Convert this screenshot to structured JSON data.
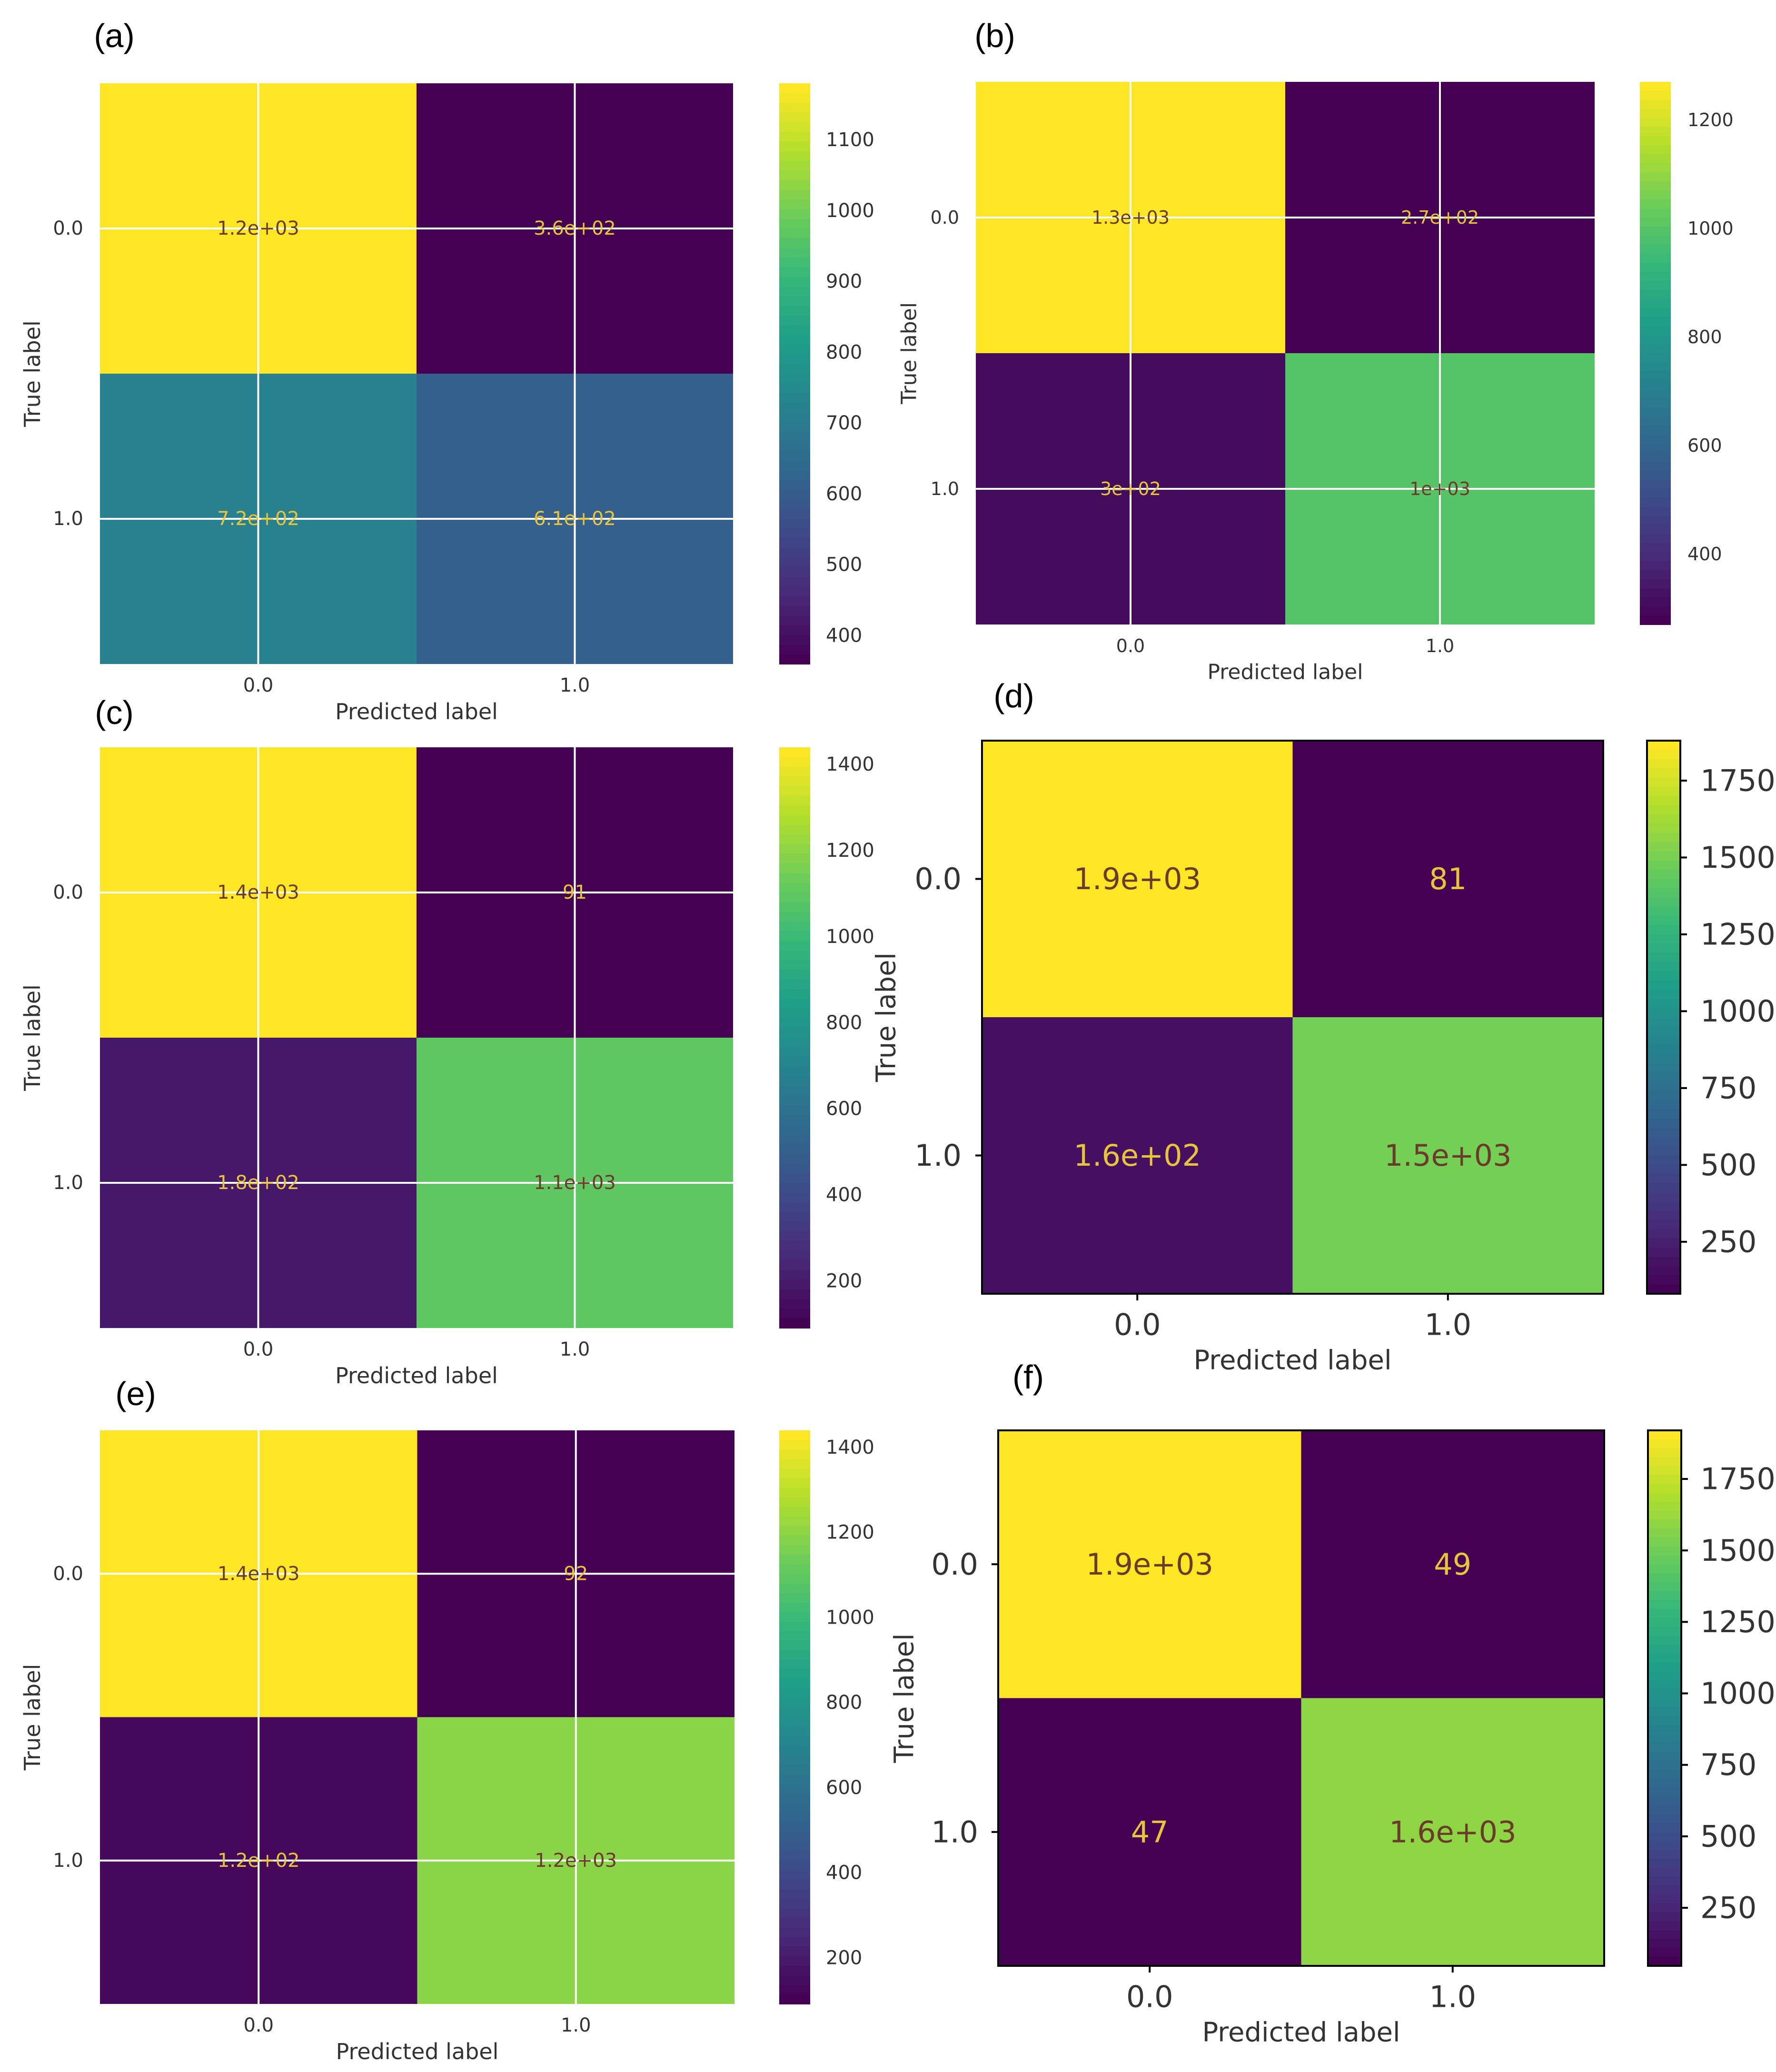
{
  "chart_data": [
    {
      "panel": "(a)",
      "type": "heatmap",
      "xlabel": "Predicted label",
      "ylabel": "True label",
      "x_ticks": [
        "0.0",
        "1.0"
      ],
      "y_ticks": [
        "0.0",
        "1.0"
      ],
      "values": [
        [
          1180,
          360
        ],
        [
          720,
          610
        ]
      ],
      "annotations": [
        [
          "1.2e+03",
          "3.6e+02"
        ],
        [
          "7.2e+02",
          "6.1e+02"
        ]
      ],
      "colorbar": {
        "min": 360,
        "max": 1180,
        "ticks": [
          400,
          500,
          600,
          700,
          800,
          900,
          1000,
          1100
        ]
      },
      "grid": true
    },
    {
      "panel": "(b)",
      "type": "heatmap",
      "xlabel": "Predicted label",
      "ylabel": "True label",
      "x_ticks": [
        "0.0",
        "1.0"
      ],
      "y_ticks": [
        "0.0",
        "1.0"
      ],
      "values": [
        [
          1270,
          270
        ],
        [
          300,
          1000
        ]
      ],
      "annotations": [
        [
          "1.3e+03",
          "2.7e+02"
        ],
        [
          "3e+02",
          "1e+03"
        ]
      ],
      "colorbar": {
        "min": 270,
        "max": 1270,
        "ticks": [
          400,
          600,
          800,
          1000,
          1200
        ]
      },
      "grid": true
    },
    {
      "panel": "(c)",
      "type": "heatmap",
      "xlabel": "Predicted label",
      "ylabel": "True label",
      "x_ticks": [
        "0.0",
        "1.0"
      ],
      "y_ticks": [
        "0.0",
        "1.0"
      ],
      "values": [
        [
          1440,
          91
        ],
        [
          180,
          1100
        ]
      ],
      "annotations": [
        [
          "1.4e+03",
          "91"
        ],
        [
          "1.8e+02",
          "1.1e+03"
        ]
      ],
      "colorbar": {
        "min": 91,
        "max": 1440,
        "ticks": [
          200,
          400,
          600,
          800,
          1000,
          1200,
          1400
        ]
      },
      "grid": true
    },
    {
      "panel": "(d)",
      "type": "heatmap",
      "xlabel": "Predicted label",
      "ylabel": "True label",
      "x_ticks": [
        "0.0",
        "1.0"
      ],
      "y_ticks": [
        "0.0",
        "1.0"
      ],
      "values": [
        [
          1880,
          81
        ],
        [
          160,
          1500
        ]
      ],
      "annotations": [
        [
          "1.9e+03",
          "81"
        ],
        [
          "1.6e+02",
          "1.5e+03"
        ]
      ],
      "colorbar": {
        "min": 81,
        "max": 1880,
        "ticks": [
          250,
          500,
          750,
          1000,
          1250,
          1500,
          1750
        ]
      },
      "grid": false
    },
    {
      "panel": "(e)",
      "type": "heatmap",
      "xlabel": "Predicted label",
      "ylabel": "True label",
      "x_ticks": [
        "0.0",
        "1.0"
      ],
      "y_ticks": [
        "0.0",
        "1.0"
      ],
      "values": [
        [
          1440,
          92
        ],
        [
          120,
          1200
        ]
      ],
      "annotations": [
        [
          "1.4e+03",
          "92"
        ],
        [
          "1.2e+02",
          "1.2e+03"
        ]
      ],
      "colorbar": {
        "min": 92,
        "max": 1440,
        "ticks": [
          200,
          400,
          600,
          800,
          1000,
          1200,
          1400
        ]
      },
      "grid": true
    },
    {
      "panel": "(f)",
      "type": "heatmap",
      "xlabel": "Predicted label",
      "ylabel": "True label",
      "x_ticks": [
        "0.0",
        "1.0"
      ],
      "y_ticks": [
        "0.0",
        "1.0"
      ],
      "values": [
        [
          1920,
          49
        ],
        [
          47,
          1600
        ]
      ],
      "annotations": [
        [
          "1.9e+03",
          "49"
        ],
        [
          "47",
          "1.6e+03"
        ]
      ],
      "colorbar": {
        "min": 47,
        "max": 1920,
        "ticks": [
          250,
          500,
          750,
          1000,
          1250,
          1500,
          1750
        ]
      },
      "grid": false
    }
  ]
}
